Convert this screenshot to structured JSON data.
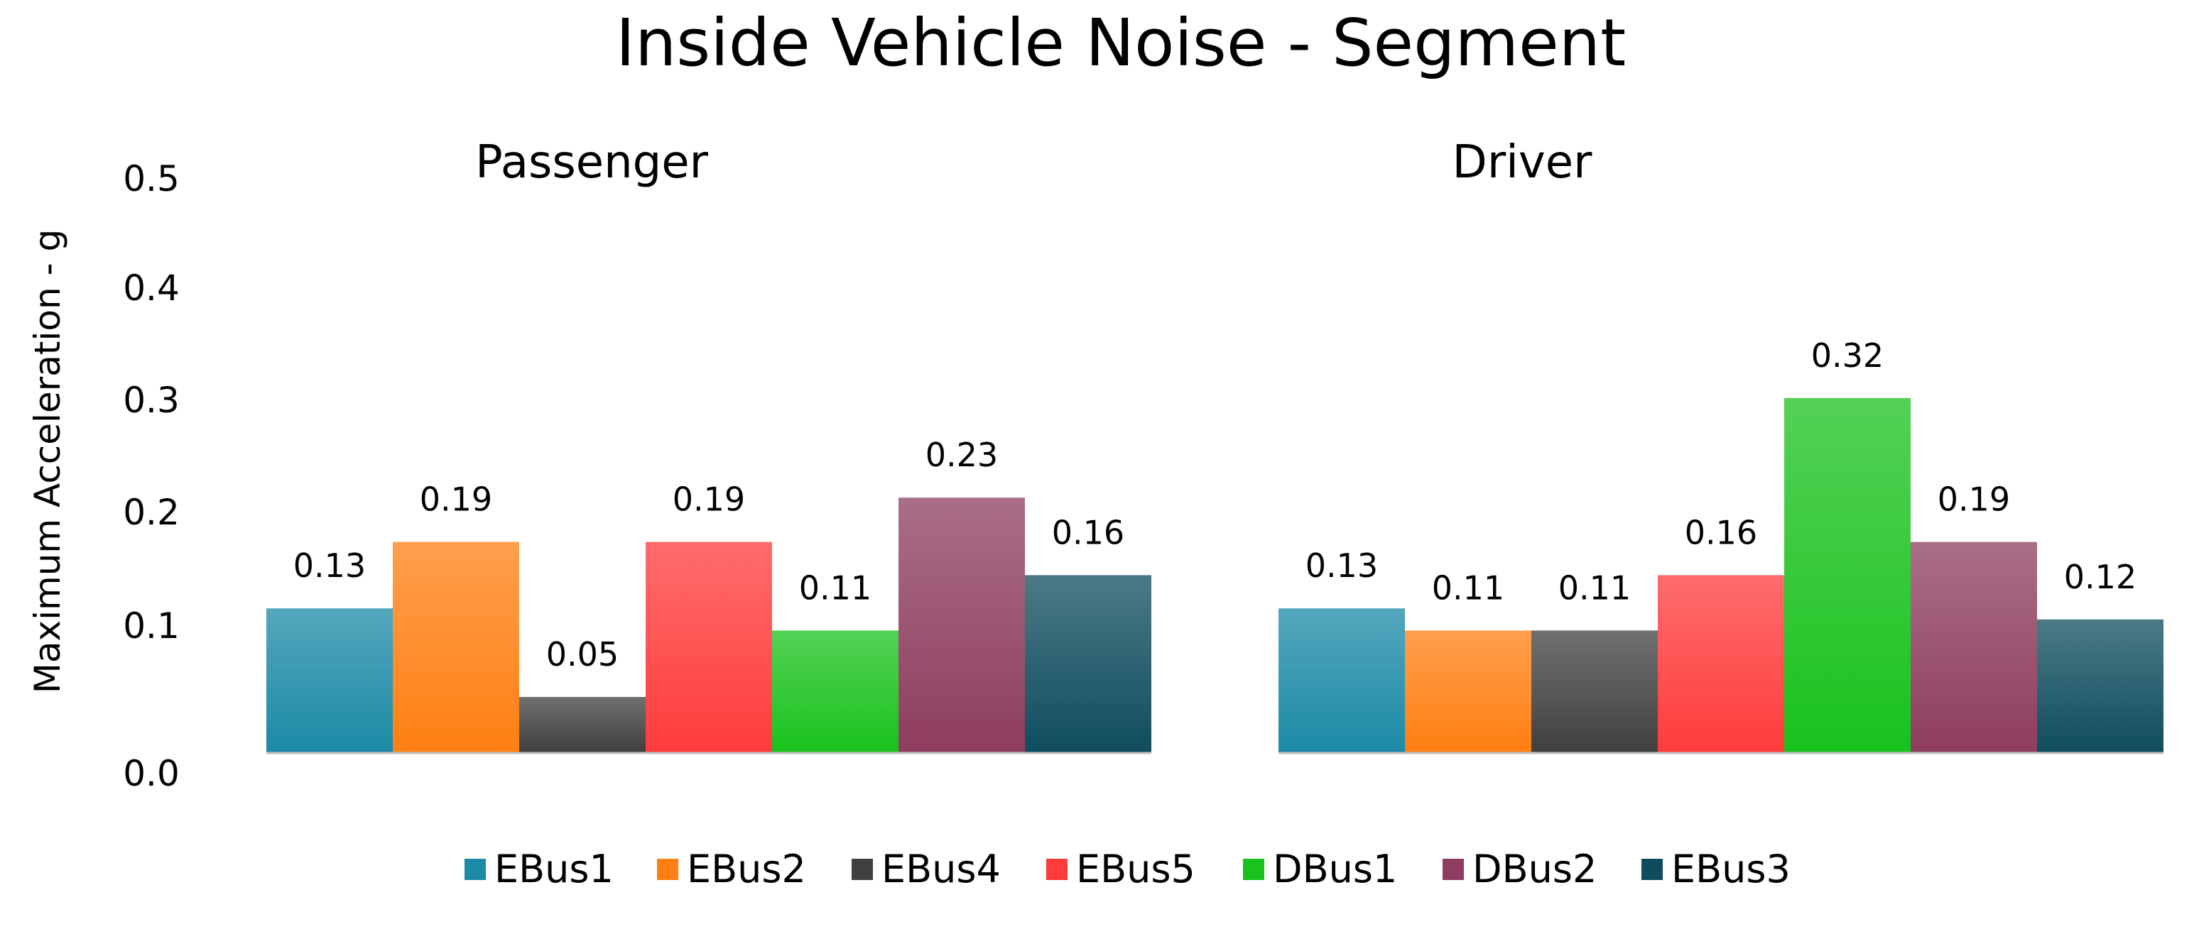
{
  "chart_data": {
    "type": "bar",
    "title": "Inside Vehicle Noise - Segment",
    "ylabel": "Maximum Acceleration - g",
    "xlabel": "",
    "ylim": [
      0,
      0.5
    ],
    "yticks": [
      "0.0",
      "0.1",
      "0.2",
      "0.3",
      "0.4",
      "0.5"
    ],
    "ytick_values": [
      0,
      0.1,
      0.2,
      0.3,
      0.4,
      0.5
    ],
    "categories": [
      "Passenger",
      "Driver"
    ],
    "series": [
      {
        "name": "EBus1",
        "color": "#1b8aa6",
        "values": [
          0.13,
          0.13
        ],
        "labels": [
          "0.13",
          "0.13"
        ]
      },
      {
        "name": "EBus2",
        "color": "#ff7f12",
        "values": [
          0.19,
          0.11
        ],
        "labels": [
          "0.19",
          "0.11"
        ]
      },
      {
        "name": "EBus4",
        "color": "#404040",
        "values": [
          0.05,
          0.11
        ],
        "labels": [
          "0.05",
          "0.11"
        ]
      },
      {
        "name": "EBus5",
        "color": "#ff3b3b",
        "values": [
          0.19,
          0.16
        ],
        "labels": [
          "0.19",
          "0.16"
        ]
      },
      {
        "name": "DBus1",
        "color": "#19c21d",
        "values": [
          0.11,
          0.32
        ],
        "labels": [
          "0.11",
          "0.32"
        ]
      },
      {
        "name": "DBus2",
        "color": "#8e3d5e",
        "values": [
          0.23,
          0.19
        ],
        "labels": [
          "0.23",
          "0.19"
        ]
      },
      {
        "name": "EBus3",
        "color": "#0f4d5e",
        "values": [
          0.16,
          0.12
        ],
        "labels": [
          "0.16",
          "0.12"
        ]
      }
    ],
    "legend_position": "bottom",
    "grid": false
  }
}
